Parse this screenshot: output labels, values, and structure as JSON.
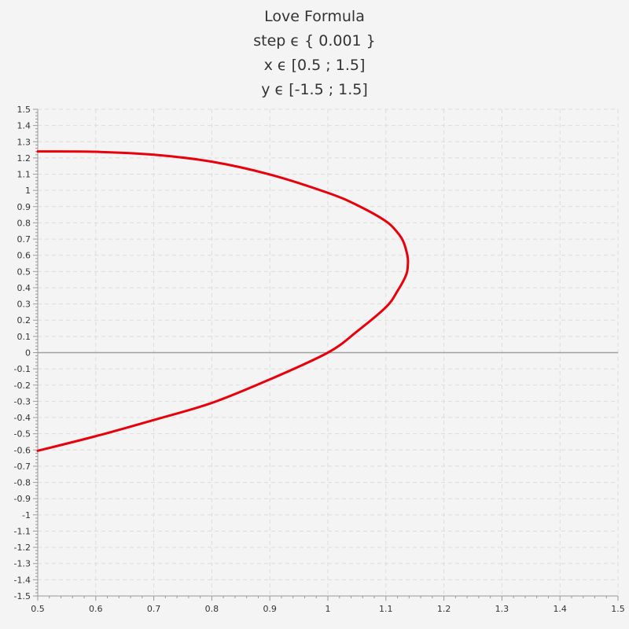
{
  "chart_data": {
    "type": "line",
    "title": "Love Formula",
    "subtitle": [
      "step ϵ { 0.001 }",
      "x ϵ [0.5 ; 1.5]",
      "y ϵ [-1.5 ; 1.5]"
    ],
    "xlabel": "",
    "ylabel": "",
    "xlim": [
      0.5,
      1.5
    ],
    "ylim": [
      -1.5,
      1.5
    ],
    "grid": true,
    "x_ticks": [
      "0.5",
      "0.6",
      "0.7",
      "0.8",
      "0.9",
      "1",
      "1.1",
      "1.2",
      "1.3",
      "1.4",
      "1.5"
    ],
    "y_ticks": [
      "-1.5",
      "-1.4",
      "-1.3",
      "-1.2",
      "-1.1",
      "-1",
      "-0.9",
      "-0.8",
      "-0.7",
      "-0.6",
      "-0.5",
      "-0.4",
      "-0.3",
      "-0.2",
      "-0.1",
      "0",
      "0.1",
      "0.2",
      "0.3",
      "0.4",
      "0.5",
      "0.6",
      "0.7",
      "0.8",
      "0.9",
      "1",
      "1.1",
      "1.2",
      "1.3",
      "1.4",
      "1.5"
    ],
    "series": [
      {
        "color": "#e8000b",
        "points": [
          [
            0.5,
            1.24
          ],
          [
            0.6,
            1.238
          ],
          [
            0.7,
            1.22
          ],
          [
            0.8,
            1.177
          ],
          [
            0.9,
            1.098
          ],
          [
            1.0,
            0.985
          ],
          [
            1.05,
            0.91
          ],
          [
            1.1,
            0.81
          ],
          [
            1.12,
            0.74
          ],
          [
            1.13,
            0.685
          ],
          [
            1.137,
            0.6
          ],
          [
            1.138,
            0.55
          ],
          [
            1.135,
            0.48
          ],
          [
            1.12,
            0.38
          ],
          [
            1.1,
            0.28
          ],
          [
            1.05,
            0.13
          ],
          [
            1.0,
            0.0
          ],
          [
            0.9,
            -0.165
          ],
          [
            0.8,
            -0.31
          ],
          [
            0.7,
            -0.415
          ],
          [
            0.6,
            -0.515
          ],
          [
            0.5,
            -0.605
          ]
        ]
      }
    ]
  }
}
